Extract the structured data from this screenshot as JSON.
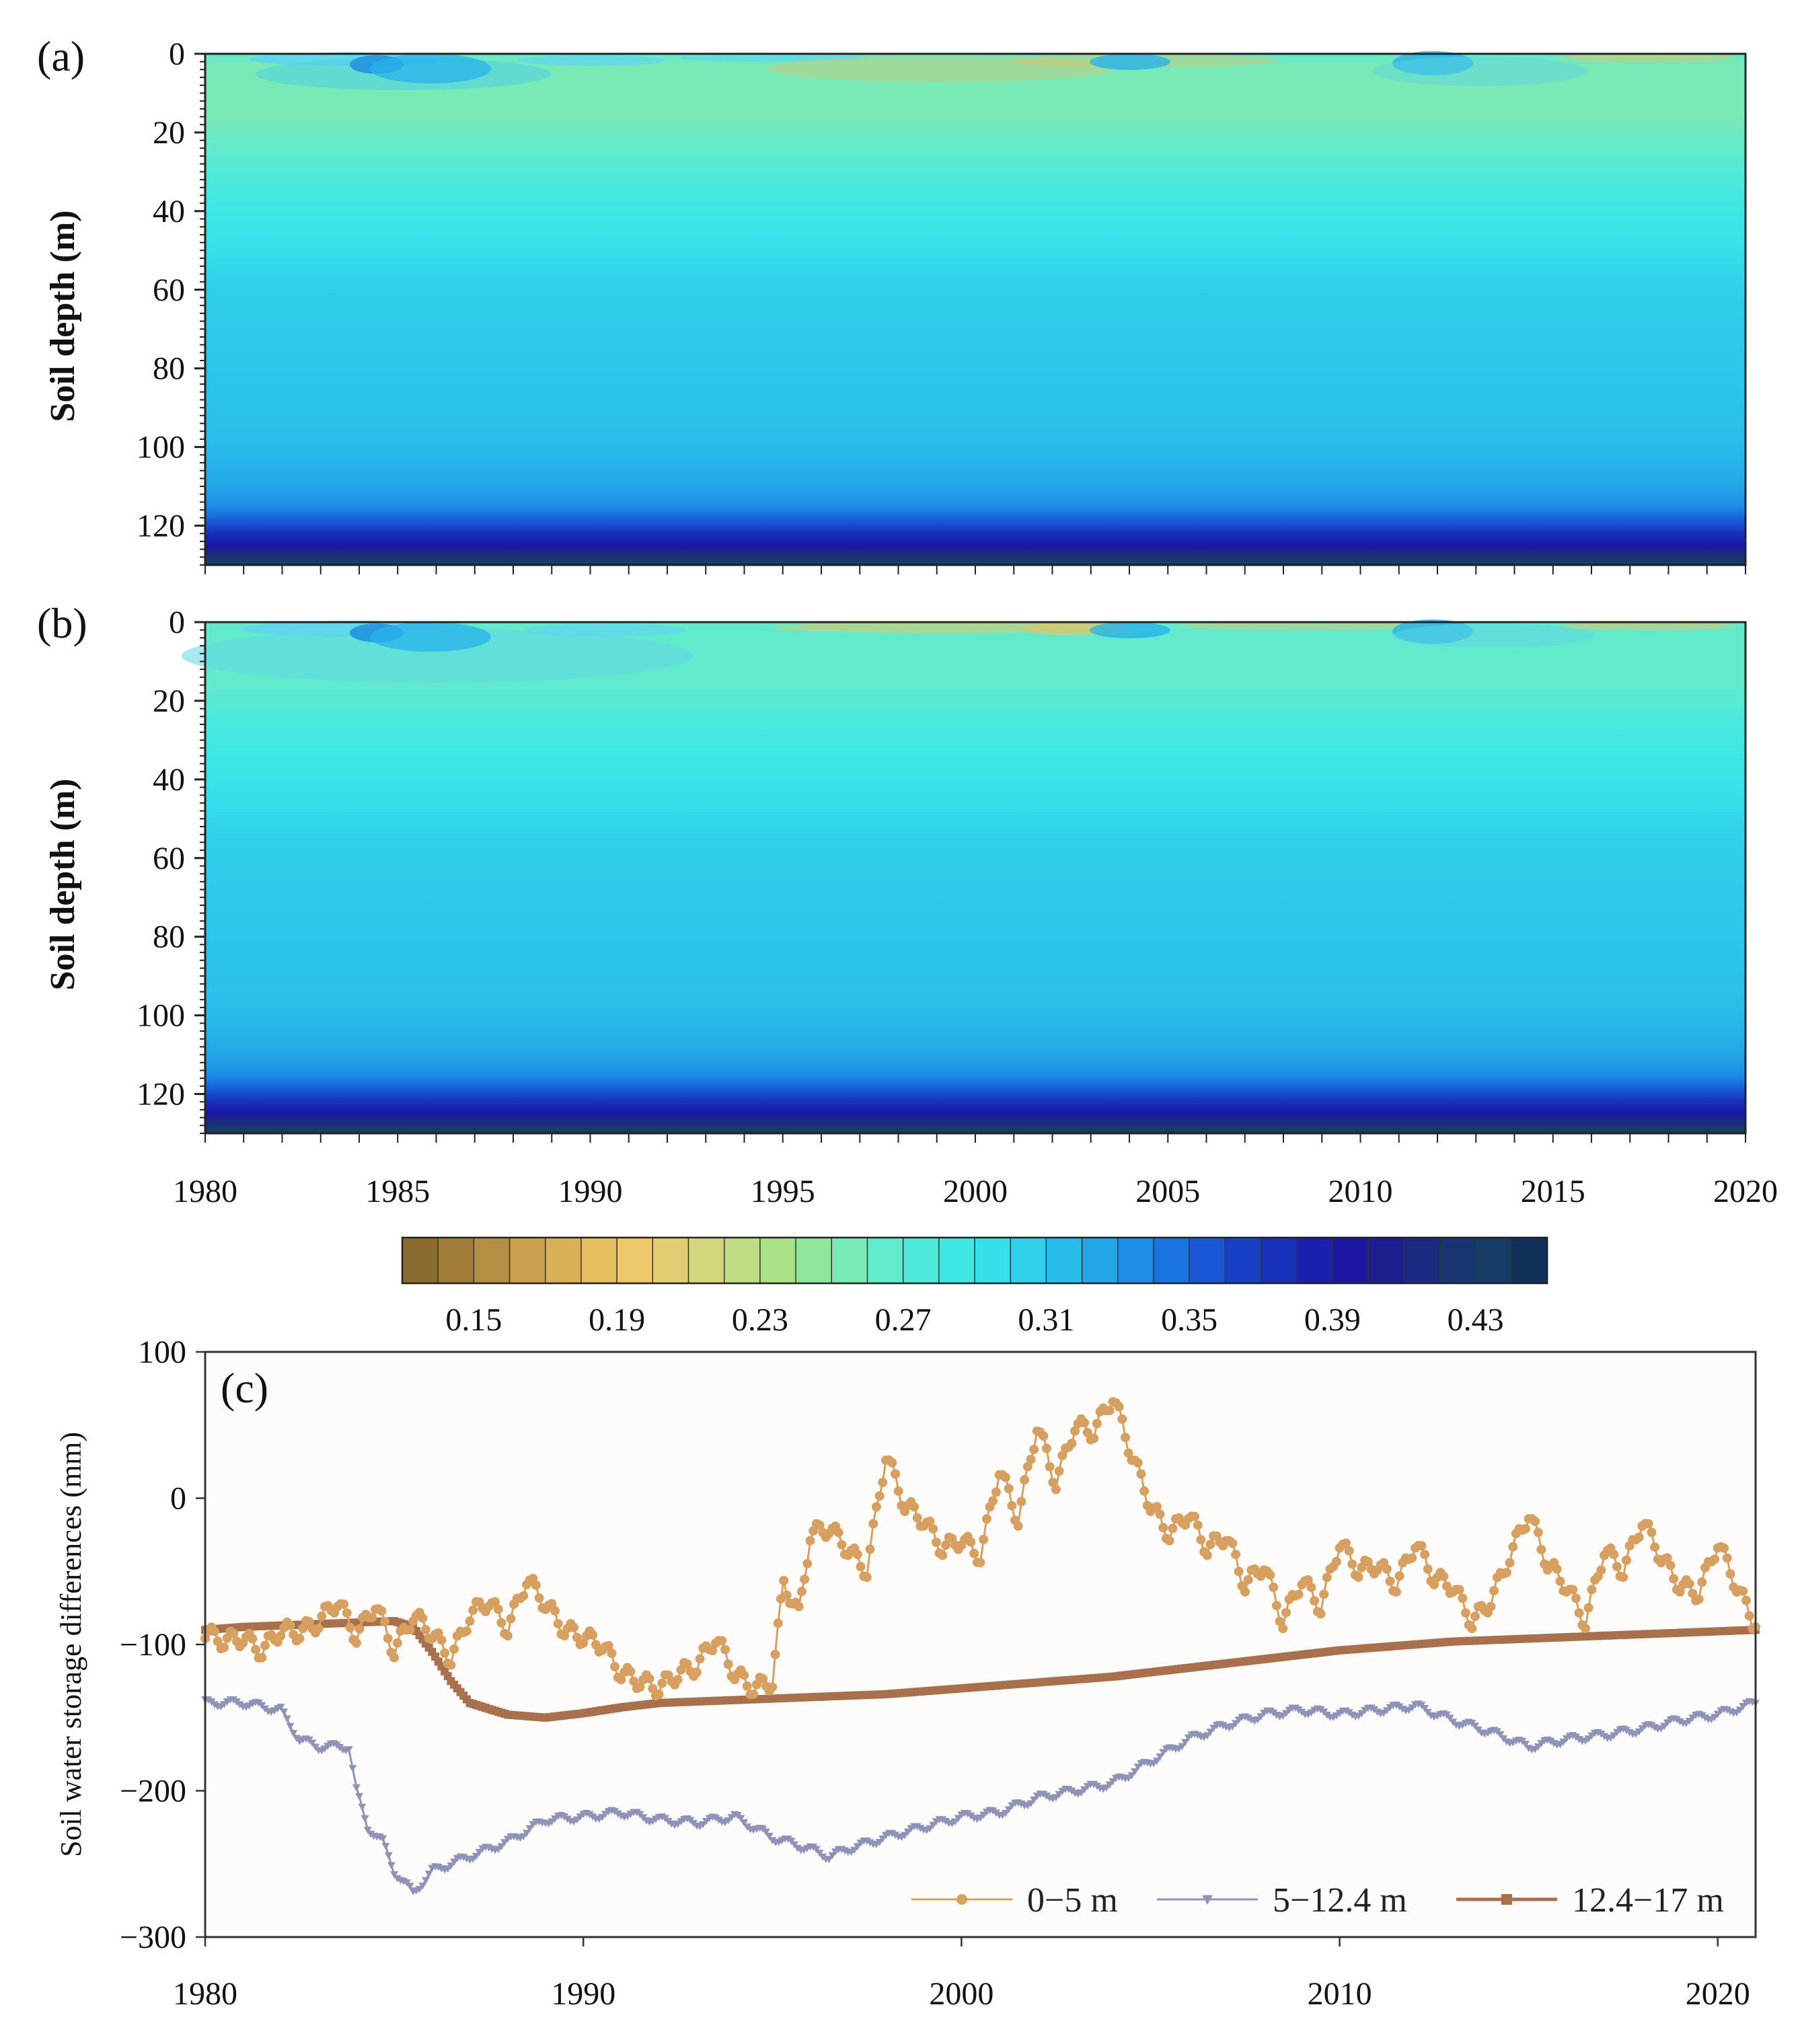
{
  "chart_data": [
    {
      "type": "heatmap",
      "panel_label": "(a)",
      "ylabel": "Soil depth (m)",
      "ylim": [
        0,
        130
      ],
      "y_ticks": [
        "0",
        "20",
        "40",
        "60",
        "80",
        "100",
        "120"
      ],
      "xlim": [
        1980,
        2020
      ],
      "depth_profile": [
        {
          "depth": 0,
          "value": 0.26
        },
        {
          "depth": 3,
          "value": 0.25
        },
        {
          "depth": 10,
          "value": 0.25
        },
        {
          "depth": 16,
          "value": 0.25
        },
        {
          "depth": 24,
          "value": 0.26
        },
        {
          "depth": 32,
          "value": 0.27
        },
        {
          "depth": 40,
          "value": 0.28
        },
        {
          "depth": 50,
          "value": 0.29
        },
        {
          "depth": 60,
          "value": 0.3
        },
        {
          "depth": 100,
          "value": 0.31
        },
        {
          "depth": 110,
          "value": 0.32
        },
        {
          "depth": 115,
          "value": 0.33
        },
        {
          "depth": 119,
          "value": 0.35
        },
        {
          "depth": 122,
          "value": 0.37
        },
        {
          "depth": 125,
          "value": 0.39
        },
        {
          "depth": 127,
          "value": 0.41
        },
        {
          "depth": 129,
          "value": 0.43
        }
      ]
    },
    {
      "type": "heatmap",
      "panel_label": "(b)",
      "ylabel": "Soil depth (m)",
      "ylim": [
        0,
        130
      ],
      "y_ticks": [
        "0",
        "20",
        "40",
        "60",
        "80",
        "100",
        "120"
      ],
      "xlim": [
        1980,
        2020
      ],
      "x_ticks": [
        "1980",
        "1985",
        "1990",
        "1995",
        "2000",
        "2005",
        "2010",
        "2015",
        "2020"
      ],
      "depth_profile": [
        {
          "depth": 0,
          "value": 0.26
        },
        {
          "depth": 5,
          "value": 0.26
        },
        {
          "depth": 16,
          "value": 0.26
        },
        {
          "depth": 24,
          "value": 0.27
        },
        {
          "depth": 34,
          "value": 0.28
        },
        {
          "depth": 44,
          "value": 0.29
        },
        {
          "depth": 56,
          "value": 0.3
        },
        {
          "depth": 100,
          "value": 0.31
        },
        {
          "depth": 110,
          "value": 0.32
        },
        {
          "depth": 115,
          "value": 0.33
        },
        {
          "depth": 119,
          "value": 0.35
        },
        {
          "depth": 122,
          "value": 0.37
        },
        {
          "depth": 125,
          "value": 0.39
        },
        {
          "depth": 127,
          "value": 0.41
        },
        {
          "depth": 129,
          "value": 0.43
        }
      ]
    },
    {
      "type": "colorbar",
      "tick_labels": [
        "0.15",
        "0.19",
        "0.23",
        "0.27",
        "0.31",
        "0.35",
        "0.39",
        "0.43"
      ],
      "range": [
        0.13,
        0.45
      ],
      "step": 0.01,
      "colors": [
        "#8a6a2e",
        "#a07c38",
        "#b58d43",
        "#c9a04e",
        "#d8b055",
        "#e6c05f",
        "#ecc86a",
        "#e2cd73",
        "#d4d67c",
        "#bfdc82",
        "#a9e286",
        "#8fe69b",
        "#79e9b6",
        "#62eacc",
        "#4ce9db",
        "#3de7e4",
        "#36e0ea",
        "#2fd0ea",
        "#28bde9",
        "#22a6e8",
        "#1d8ee6",
        "#1a72e0",
        "#1858d6",
        "#1740c6",
        "#1730b8",
        "#1a1fae",
        "#1c16a2",
        "#1d1e90",
        "#1c2a82",
        "#183573",
        "#153d66",
        "#10305a"
      ]
    },
    {
      "type": "line",
      "panel_label": "(c)",
      "ylabel": "Soil water storage differences (mm)",
      "xlim": [
        1980,
        2021
      ],
      "ylim": [
        -300,
        100
      ],
      "x_ticks": [
        "1980",
        "1990",
        "2000",
        "2010",
        "2020"
      ],
      "y_ticks": [
        "100",
        "0",
        "−100",
        "−200",
        "−300"
      ],
      "legend": [
        "0−5 m",
        "5−12.4 m",
        "12.4−17 m"
      ],
      "series": [
        {
          "name": "0−5 m",
          "color": "#d8a060",
          "marker": "circle",
          "points": [
            [
              1980,
              -92
            ],
            [
              1980.5,
              -98
            ],
            [
              1981,
              -95
            ],
            [
              1981.5,
              -105
            ],
            [
              1982,
              -90
            ],
            [
              1982.5,
              -92
            ],
            [
              1983,
              -85
            ],
            [
              1983.5,
              -70
            ],
            [
              1984,
              -95
            ],
            [
              1984.5,
              -72
            ],
            [
              1985,
              -105
            ],
            [
              1985.5,
              -80
            ],
            [
              1986,
              -92
            ],
            [
              1986.5,
              -110
            ],
            [
              1987,
              -80
            ],
            [
              1987.5,
              -70
            ],
            [
              1988,
              -90
            ],
            [
              1988.5,
              -55
            ],
            [
              1989,
              -72
            ],
            [
              1989.5,
              -90
            ],
            [
              1990,
              -95
            ],
            [
              1990.5,
              -100
            ],
            [
              1991,
              -120
            ],
            [
              1991.5,
              -125
            ],
            [
              1992,
              -130
            ],
            [
              1992.5,
              -120
            ],
            [
              1993,
              -115
            ],
            [
              1993.5,
              -95
            ],
            [
              1994,
              -120
            ],
            [
              1994.5,
              -130
            ],
            [
              1995,
              -125
            ],
            [
              1995.3,
              -57
            ],
            [
              1995.7,
              -80
            ],
            [
              1996,
              -25
            ],
            [
              1996.5,
              -20
            ],
            [
              1997,
              -35
            ],
            [
              1997.5,
              -50
            ],
            [
              1998,
              30
            ],
            [
              1998.5,
              -5
            ],
            [
              1999,
              -15
            ],
            [
              1999.5,
              -35
            ],
            [
              2000,
              -28
            ],
            [
              2000.5,
              -40
            ],
            [
              2001,
              20
            ],
            [
              2001.5,
              -15
            ],
            [
              2002,
              50
            ],
            [
              2002.5,
              10
            ],
            [
              2003,
              50
            ],
            [
              2003.5,
              45
            ],
            [
              2004,
              70
            ],
            [
              2004.5,
              30
            ],
            [
              2005,
              -5
            ],
            [
              2005.5,
              -25
            ],
            [
              2006,
              -10
            ],
            [
              2006.5,
              -35
            ],
            [
              2007,
              -25
            ],
            [
              2007.5,
              -60
            ],
            [
              2008,
              -45
            ],
            [
              2008.5,
              -85
            ],
            [
              2009,
              -55
            ],
            [
              2009.5,
              -75
            ],
            [
              2010,
              -30
            ],
            [
              2010.5,
              -50
            ],
            [
              2011,
              -45
            ],
            [
              2011.5,
              -60
            ],
            [
              2012,
              -30
            ],
            [
              2012.5,
              -55
            ],
            [
              2013,
              -60
            ],
            [
              2013.5,
              -85
            ],
            [
              2014,
              -70
            ],
            [
              2014.5,
              -40
            ],
            [
              2015,
              -10
            ],
            [
              2015.5,
              -45
            ],
            [
              2016,
              -60
            ],
            [
              2016.5,
              -85
            ],
            [
              2017,
              -35
            ],
            [
              2017.5,
              -50
            ],
            [
              2018,
              -15
            ],
            [
              2018.5,
              -40
            ],
            [
              2019,
              -60
            ],
            [
              2019.5,
              -65
            ],
            [
              2020,
              -30
            ],
            [
              2020.5,
              -60
            ],
            [
              2021,
              -88
            ]
          ]
        },
        {
          "name": "5−12.4 m",
          "color": "#8f93b8",
          "marker": "triangle",
          "points": [
            [
              1980,
              -140
            ],
            [
              1981,
              -140
            ],
            [
              1982,
              -145
            ],
            [
              1982.5,
              -165
            ],
            [
              1983,
              -170
            ],
            [
              1983.8,
              -170
            ],
            [
              1984,
              -200
            ],
            [
              1984.3,
              -225
            ],
            [
              1984.7,
              -235
            ],
            [
              1985,
              -255
            ],
            [
              1985.5,
              -270
            ],
            [
              1986,
              -255
            ],
            [
              1987,
              -245
            ],
            [
              1988,
              -235
            ],
            [
              1989,
              -220
            ],
            [
              1990,
              -218
            ],
            [
              1991,
              -215
            ],
            [
              1992,
              -220
            ],
            [
              1993,
              -222
            ],
            [
              1994,
              -218
            ],
            [
              1995,
              -232
            ],
            [
              1996,
              -240
            ],
            [
              1996.5,
              -245
            ],
            [
              1997,
              -240
            ],
            [
              1998,
              -232
            ],
            [
              1999,
              -225
            ],
            [
              2000,
              -218
            ],
            [
              2001,
              -215
            ],
            [
              2002,
              -205
            ],
            [
              2003,
              -200
            ],
            [
              2004,
              -195
            ],
            [
              2005,
              -180
            ],
            [
              2006,
              -165
            ],
            [
              2007,
              -155
            ],
            [
              2008,
              -148
            ],
            [
              2009,
              -145
            ],
            [
              2010,
              -148
            ],
            [
              2011,
              -145
            ],
            [
              2012,
              -142
            ],
            [
              2013,
              -152
            ],
            [
              2014,
              -160
            ],
            [
              2015,
              -170
            ],
            [
              2016,
              -165
            ],
            [
              2017,
              -162
            ],
            [
              2018,
              -158
            ],
            [
              2019,
              -152
            ],
            [
              2020,
              -148
            ],
            [
              2021,
              -140
            ]
          ]
        },
        {
          "name": "12.4−17 m",
          "color": "#a8704c",
          "marker": "square",
          "points": [
            [
              1980,
              -90
            ],
            [
              1981,
              -88
            ],
            [
              1982,
              -87
            ],
            [
              1983,
              -86
            ],
            [
              1984,
              -85
            ],
            [
              1985,
              -84
            ],
            [
              1985.5,
              -88
            ],
            [
              1986,
              -105
            ],
            [
              1986.5,
              -125
            ],
            [
              1987,
              -140
            ],
            [
              1988,
              -148
            ],
            [
              1989,
              -150
            ],
            [
              1990,
              -147
            ],
            [
              1991,
              -143
            ],
            [
              1992,
              -140
            ],
            [
              1993,
              -139
            ],
            [
              1994,
              -138
            ],
            [
              1995,
              -137
            ],
            [
              1996,
              -136
            ],
            [
              1997,
              -135
            ],
            [
              1998,
              -134
            ],
            [
              1999,
              -132
            ],
            [
              2000,
              -130
            ],
            [
              2001,
              -128
            ],
            [
              2002,
              -126
            ],
            [
              2003,
              -124
            ],
            [
              2004,
              -122
            ],
            [
              2005,
              -119
            ],
            [
              2006,
              -116
            ],
            [
              2007,
              -113
            ],
            [
              2008,
              -110
            ],
            [
              2009,
              -107
            ],
            [
              2010,
              -104
            ],
            [
              2011,
              -102
            ],
            [
              2012,
              -100
            ],
            [
              2013,
              -98
            ],
            [
              2014,
              -97
            ],
            [
              2015,
              -96
            ],
            [
              2016,
              -95
            ],
            [
              2017,
              -94
            ],
            [
              2018,
              -93
            ],
            [
              2019,
              -92
            ],
            [
              2020,
              -91
            ],
            [
              2021,
              -90
            ]
          ]
        }
      ]
    }
  ]
}
